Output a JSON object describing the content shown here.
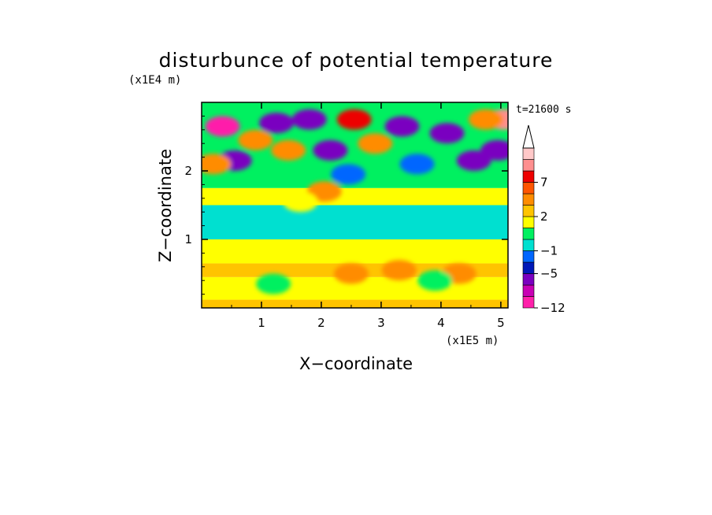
{
  "chart_data": {
    "type": "heatmap",
    "title": "disturbunce of potential temperature",
    "xlabel": "X−coordinate",
    "ylabel": "Z−coordinate",
    "x_unit": "(x1E5 m)",
    "y_unit": "(x1E4 m)",
    "time_label": "t=21600 s",
    "xlim": [
      0,
      5.12
    ],
    "ylim": [
      0,
      3.0
    ],
    "x_ticks": [
      {
        "value": 1,
        "label": "1"
      },
      {
        "value": 2,
        "label": "2"
      },
      {
        "value": 3,
        "label": "3"
      },
      {
        "value": 4,
        "label": "4"
      },
      {
        "value": 5,
        "label": "5"
      }
    ],
    "y_ticks": [
      {
        "value": 1,
        "label": "1"
      },
      {
        "value": 2,
        "label": "2"
      }
    ],
    "colorbar": {
      "levels": [
        -12,
        -9,
        -7,
        -5,
        -3,
        -1,
        0,
        1,
        2,
        3,
        5,
        7,
        9,
        11,
        13
      ],
      "labels": [
        {
          "value": -12,
          "label": "−12"
        },
        {
          "value": -5,
          "label": "−5"
        },
        {
          "value": -1,
          "label": "−1"
        },
        {
          "value": 2,
          "label": "2"
        },
        {
          "value": 7,
          "label": "7"
        }
      ],
      "colors": [
        "#ff1faa",
        "#c800b4",
        "#7a00c0",
        "#0018b8",
        "#0066ff",
        "#00e0d0",
        "#00f060",
        "#ffff00",
        "#ffc400",
        "#ff8c00",
        "#ff5500",
        "#ee0000",
        "#ff8f8f",
        "#ffc8c8"
      ],
      "extend_max": true
    },
    "bands": [
      {
        "z": [
          0.0,
          0.12
        ],
        "level": 2
      },
      {
        "z": [
          0.12,
          0.45
        ],
        "level": 1
      },
      {
        "z": [
          0.45,
          0.65
        ],
        "level": 2
      },
      {
        "z": [
          0.65,
          1.0
        ],
        "level": 1
      },
      {
        "z": [
          1.0,
          1.5
        ],
        "level": -1
      },
      {
        "z": [
          1.5,
          1.75
        ],
        "level": 1
      },
      {
        "z": [
          1.75,
          2.0
        ],
        "level": 0
      },
      {
        "z": [
          2.0,
          3.0
        ],
        "level": 0
      }
    ],
    "features": [
      {
        "x": 0.35,
        "z": 2.65,
        "value": -10
      },
      {
        "x": 0.55,
        "z": 2.15,
        "value": -6
      },
      {
        "x": 0.9,
        "z": 2.45,
        "value": 3
      },
      {
        "x": 1.25,
        "z": 2.7,
        "value": -6
      },
      {
        "x": 1.45,
        "z": 2.3,
        "value": 3
      },
      {
        "x": 1.8,
        "z": 2.75,
        "value": -6
      },
      {
        "x": 2.15,
        "z": 2.3,
        "value": -6
      },
      {
        "x": 2.45,
        "z": 1.95,
        "value": -3
      },
      {
        "x": 2.55,
        "z": 2.75,
        "value": 8
      },
      {
        "x": 2.05,
        "z": 1.7,
        "value": 3
      },
      {
        "x": 2.9,
        "z": 2.4,
        "value": 3
      },
      {
        "x": 3.35,
        "z": 2.65,
        "value": -6
      },
      {
        "x": 3.6,
        "z": 2.1,
        "value": -3
      },
      {
        "x": 4.1,
        "z": 2.55,
        "value": -6
      },
      {
        "x": 4.55,
        "z": 2.15,
        "value": -6
      },
      {
        "x": 4.95,
        "z": 2.3,
        "value": -7
      },
      {
        "x": 5.05,
        "z": 2.75,
        "value": 10
      },
      {
        "x": 4.75,
        "z": 2.75,
        "value": 3
      },
      {
        "x": 0.2,
        "z": 2.1,
        "value": 3
      },
      {
        "x": 1.65,
        "z": 1.55,
        "value": 1
      },
      {
        "x": 3.3,
        "z": 0.55,
        "value": 3
      },
      {
        "x": 2.5,
        "z": 0.5,
        "value": 3
      },
      {
        "x": 4.3,
        "z": 0.5,
        "value": 3
      },
      {
        "x": 1.2,
        "z": 0.35,
        "value": 0
      },
      {
        "x": 3.9,
        "z": 0.4,
        "value": 0
      }
    ]
  }
}
